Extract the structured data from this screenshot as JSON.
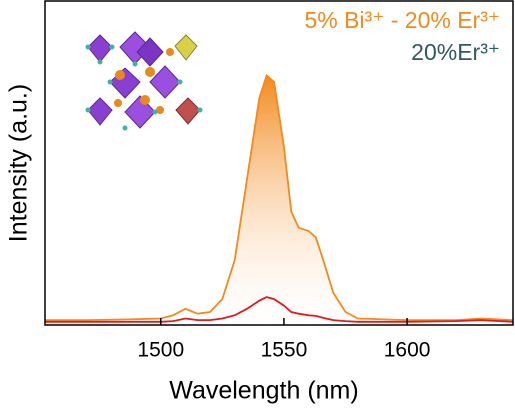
{
  "chart_data": {
    "type": "line",
    "x_label": "Wavelength (nm)",
    "y_label": "Intensity (a.u.)",
    "x": [
      1453,
      1470,
      1490,
      1500,
      1505,
      1510,
      1515,
      1520,
      1525,
      1530,
      1535,
      1540,
      1543,
      1546,
      1550,
      1553,
      1556,
      1560,
      1563,
      1566,
      1570,
      1575,
      1580,
      1600,
      1620,
      1630,
      1643
    ],
    "series": [
      {
        "name": "5% Bi³⁺ - 20% Er³⁺",
        "color": "#f28a1e",
        "fill": true,
        "values": [
          0.015,
          0.015,
          0.018,
          0.02,
          0.03,
          0.05,
          0.035,
          0.04,
          0.08,
          0.2,
          0.45,
          0.7,
          0.77,
          0.75,
          0.55,
          0.35,
          0.3,
          0.29,
          0.27,
          0.2,
          0.1,
          0.04,
          0.02,
          0.015,
          0.015,
          0.02,
          0.015
        ]
      },
      {
        "name": "20%Er³⁺",
        "color": "#e01b1b",
        "legend_color": "#2e5a64",
        "values": [
          0.01,
          0.01,
          0.01,
          0.01,
          0.012,
          0.02,
          0.015,
          0.015,
          0.02,
          0.03,
          0.05,
          0.075,
          0.086,
          0.08,
          0.06,
          0.04,
          0.035,
          0.03,
          0.028,
          0.022,
          0.015,
          0.012,
          0.01,
          0.01,
          0.012,
          0.015,
          0.01
        ]
      }
    ],
    "xlim": [
      1453,
      1643
    ],
    "ylim": [
      0,
      1
    ],
    "xticks": [
      1500,
      1550,
      1600
    ]
  }
}
